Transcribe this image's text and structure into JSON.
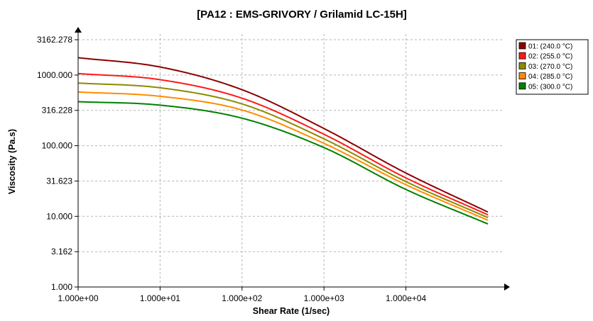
{
  "chart_data": {
    "type": "line",
    "title": "[PA12 : EMS-GRIVORY / Grilamid LC-15H]",
    "xlabel": "Shear Rate (1/sec)",
    "ylabel": "Viscosity (Pa.s)",
    "x_scale": "log",
    "y_scale": "log",
    "xlim": [
      1,
      150000
    ],
    "ylim": [
      1,
      4000
    ],
    "x_ticks": [
      {
        "value": 1,
        "label": "1.000e+00"
      },
      {
        "value": 10,
        "label": "1.000e+01"
      },
      {
        "value": 100,
        "label": "1.000e+02"
      },
      {
        "value": 1000,
        "label": "1.000e+03"
      },
      {
        "value": 10000,
        "label": "1.000e+04"
      }
    ],
    "y_ticks": [
      {
        "value": 1,
        "label": "1.000"
      },
      {
        "value": 3.162,
        "label": "3.162"
      },
      {
        "value": 10,
        "label": "10.000"
      },
      {
        "value": 31.623,
        "label": "31.623"
      },
      {
        "value": 100,
        "label": "100.000"
      },
      {
        "value": 316.228,
        "label": "316.228"
      },
      {
        "value": 1000,
        "label": "1000.000"
      },
      {
        "value": 3162.278,
        "label": "3162.278"
      }
    ],
    "grid": true,
    "legend_position": "top-right",
    "x": [
      1,
      10,
      100,
      1000,
      10000,
      100000
    ],
    "series": [
      {
        "name": "01: (240.0 °C)",
        "color": "#8b0000",
        "values": [
          1760,
          1300,
          620,
          175,
          41,
          11.5
        ]
      },
      {
        "name": "02: (255.0 °C)",
        "color": "#ff1a1a",
        "values": [
          1050,
          860,
          470,
          145,
          35,
          10.5
        ]
      },
      {
        "name": "03: (270.0 °C)",
        "color": "#8b8b00",
        "values": [
          770,
          660,
          390,
          125,
          31,
          9.6
        ]
      },
      {
        "name": "04: (285.0 °C)",
        "color": "#ff8c00",
        "values": [
          575,
          500,
          320,
          108,
          28,
          8.8
        ]
      },
      {
        "name": "05: (300.0 °C)",
        "color": "#008000",
        "values": [
          420,
          375,
          245,
          94,
          24,
          7.8
        ]
      }
    ]
  }
}
